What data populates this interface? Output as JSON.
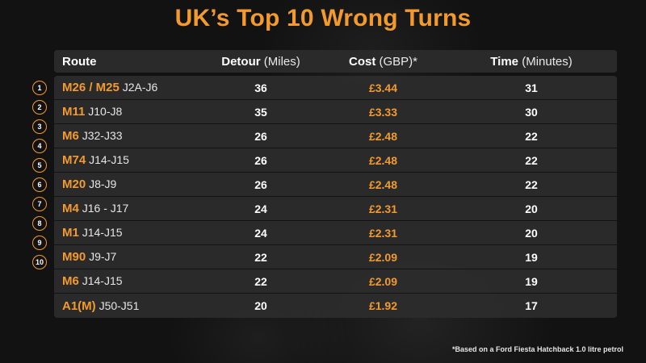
{
  "chart_data": {
    "type": "table",
    "title": "UK’s Top 10 Wrong Turns",
    "columns": [
      {
        "name": "Route",
        "unit": ""
      },
      {
        "name": "Detour",
        "unit": "(Miles)"
      },
      {
        "name": "Cost",
        "unit": "(GBP)*"
      },
      {
        "name": "Time",
        "unit": "(Minutes)"
      }
    ],
    "rows": [
      {
        "rank": "1",
        "road": "M26 / M25",
        "junctions": "J2A-J6",
        "detour": "36",
        "cost": "£3.44",
        "time": "31"
      },
      {
        "rank": "2",
        "road": "M11",
        "junctions": "J10-J8",
        "detour": "35",
        "cost": "£3.33",
        "time": "30"
      },
      {
        "rank": "3",
        "road": "M6",
        "junctions": "J32-J33",
        "detour": "26",
        "cost": "£2.48",
        "time": "22"
      },
      {
        "rank": "4",
        "road": "M74",
        "junctions": "J14-J15",
        "detour": "26",
        "cost": "£2.48",
        "time": "22"
      },
      {
        "rank": "5",
        "road": "M20",
        "junctions": "J8-J9",
        "detour": "26",
        "cost": "£2.48",
        "time": "22"
      },
      {
        "rank": "6",
        "road": "M4",
        "junctions": "J16 - J17",
        "detour": "24",
        "cost": "£2.31",
        "time": "20"
      },
      {
        "rank": "7",
        "road": "M1",
        "junctions": "J14-J15",
        "detour": "24",
        "cost": "£2.31",
        "time": "20"
      },
      {
        "rank": "8",
        "road": "M90",
        "junctions": "J9-J7",
        "detour": "22",
        "cost": "£2.09",
        "time": "19"
      },
      {
        "rank": "9",
        "road": "M6",
        "junctions": "J14-J15",
        "detour": "22",
        "cost": "£2.09",
        "time": "19"
      },
      {
        "rank": "10",
        "road": "A1(M)",
        "junctions": "J50-J51",
        "detour": "20",
        "cost": "£1.92",
        "time": "17"
      }
    ],
    "footnote": "*Based on a Ford Fiesta Hatchback 1.0 litre petrol",
    "colors": {
      "accent": "#f39a2e",
      "background": "#121212",
      "row": "#2d2d2d",
      "text": "#ffffff"
    }
  }
}
